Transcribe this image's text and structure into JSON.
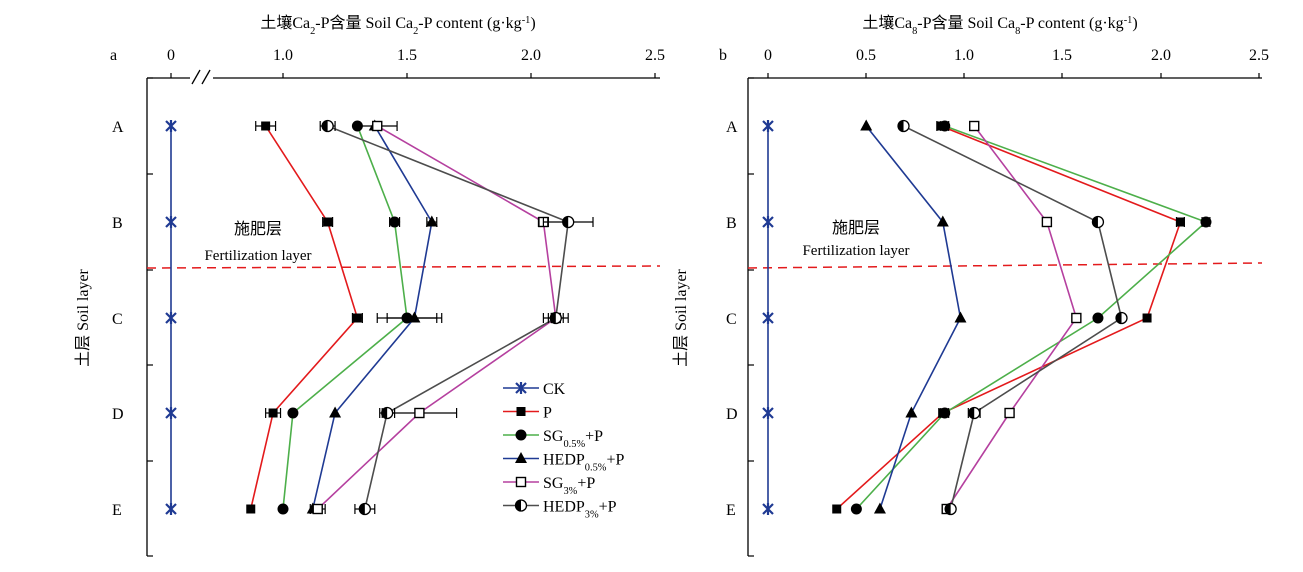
{
  "figure": {
    "series_legend": [
      "CK",
      "P",
      "SG0.5%+P",
      "HEDP0.5%+P",
      "SG3%+P",
      "HEDP3%+P"
    ]
  },
  "chart_data": [
    {
      "type": "line",
      "panel_label": "a",
      "title": "土壤Ca₂-P含量 Soil Ca₂-P content (g·kg⁻¹)",
      "ylabel": "土层 Soil layer",
      "categories": [
        "A",
        "B",
        "C",
        "D",
        "E"
      ],
      "xlim": [
        0,
        2.5
      ],
      "axis_break": true,
      "x_ticks": [
        "0",
        "1.0",
        "1.5",
        "2.0",
        "2.5"
      ],
      "legend_position": "lower-right",
      "annotation": {
        "zh": "施肥层",
        "en": "Fertilization layer"
      },
      "series": [
        {
          "name": "CK",
          "color": "#1f3a93",
          "marker": "star",
          "values": [
            0,
            0,
            0,
            0,
            0
          ],
          "errors": [
            0,
            0,
            0,
            0,
            0
          ]
        },
        {
          "name": "P",
          "color": "#e31a1c",
          "marker": "square",
          "values": [
            0.93,
            1.18,
            1.3,
            0.96,
            0.87
          ],
          "errors": [
            0.04,
            0.02,
            0.02,
            0.03,
            0.0
          ]
        },
        {
          "name": "SG0.5%+P",
          "color": "#4daf4a",
          "marker": "circle",
          "values": [
            1.3,
            1.45,
            1.5,
            1.04,
            1.0
          ],
          "errors": [
            0.0,
            0.02,
            0.12,
            0.0,
            0.0
          ]
        },
        {
          "name": "HEDP0.5%+P",
          "color": "#1f3a93",
          "marker": "triangle",
          "values": [
            1.37,
            1.6,
            1.53,
            1.21,
            1.12
          ],
          "errors": [
            0.0,
            0.02,
            0.11,
            0.0,
            0.0
          ]
        },
        {
          "name": "SG3%+P",
          "color": "#b5409f",
          "marker": "open-square",
          "values": [
            1.38,
            2.05,
            2.1,
            1.55,
            1.14
          ],
          "errors": [
            0.08,
            0.02,
            0.05,
            0.15,
            0.03
          ]
        },
        {
          "name": "HEDP3%+P",
          "color": "#4d4d4d",
          "marker": "half-circle",
          "values": [
            1.18,
            2.15,
            2.1,
            1.42,
            1.33
          ],
          "errors": [
            0.03,
            0.1,
            0.03,
            0.03,
            0.04
          ]
        }
      ]
    },
    {
      "type": "line",
      "panel_label": "b",
      "title": "土壤Ca₈-P含量 Soil Ca₈-P content (g·kg⁻¹)",
      "ylabel": "土层 Soil layer",
      "categories": [
        "A",
        "B",
        "C",
        "D",
        "E"
      ],
      "xlim": [
        0,
        2.5
      ],
      "axis_break": false,
      "x_ticks": [
        "0",
        "0.5",
        "1.0",
        "1.5",
        "2.0",
        "2.5"
      ],
      "annotation": {
        "zh": "施肥层",
        "en": "Fertilization layer"
      },
      "series": [
        {
          "name": "CK",
          "color": "#1f3a93",
          "marker": "star",
          "values": [
            0,
            0,
            0,
            0,
            0
          ],
          "errors": [
            0,
            0,
            0,
            0,
            0
          ]
        },
        {
          "name": "P",
          "color": "#e31a1c",
          "marker": "square",
          "values": [
            0.88,
            2.1,
            1.93,
            0.89,
            0.35
          ],
          "errors": [
            0.02,
            0.02,
            0.0,
            0.02,
            0.0
          ]
        },
        {
          "name": "SG0.5%+P",
          "color": "#4daf4a",
          "marker": "circle",
          "values": [
            0.9,
            2.23,
            1.68,
            0.9,
            0.45
          ],
          "errors": [
            0.02,
            0.02,
            0.0,
            0.02,
            0.0
          ]
        },
        {
          "name": "HEDP0.5%+P",
          "color": "#1f3a93",
          "marker": "triangle",
          "values": [
            0.5,
            0.89,
            0.98,
            0.73,
            0.57
          ],
          "errors": [
            0.0,
            0.0,
            0.0,
            0.0,
            0.0
          ]
        },
        {
          "name": "SG3%+P",
          "color": "#b5409f",
          "marker": "open-square",
          "values": [
            1.05,
            1.42,
            1.57,
            1.23,
            0.91
          ],
          "errors": [
            0.0,
            0.0,
            0.02,
            0.0,
            0.0
          ]
        },
        {
          "name": "HEDP3%+P",
          "color": "#4d4d4d",
          "marker": "half-circle",
          "values": [
            0.69,
            1.68,
            1.8,
            1.05,
            0.93
          ],
          "errors": [
            0.0,
            0.0,
            0.0,
            0.03,
            0.0
          ]
        }
      ]
    }
  ]
}
